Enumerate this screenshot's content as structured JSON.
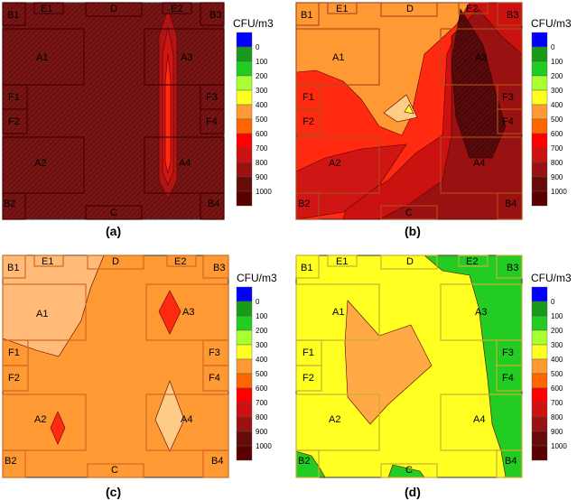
{
  "figure": {
    "panels": [
      {
        "id": "a",
        "caption": "(a)",
        "legend_title": "CFU/m3",
        "labels": {
          "B1": "B1",
          "B2": "B2",
          "B3": "B3",
          "B4": "B4",
          "E1": "E1",
          "E2": "E2",
          "D": "D",
          "C": "C",
          "A1": "A1",
          "A2": "A2",
          "A3": "A3",
          "A4": "A4",
          "F1": "F1",
          "F2": "F2",
          "F3": "F3",
          "F4": "F4"
        }
      },
      {
        "id": "b",
        "caption": "(b)",
        "legend_title": "CFU/m3",
        "labels": {
          "B1": "B1",
          "B2": "B2",
          "B3": "B3",
          "B4": "B4",
          "E1": "E1",
          "E2": "E2",
          "D": "D",
          "C": "C",
          "A1": "A1",
          "A2": "A2",
          "A3": "A3",
          "A4": "A4",
          "F1": "F1",
          "F2": "F2",
          "F3": "F3",
          "F4": "F4"
        }
      },
      {
        "id": "c",
        "caption": "(c)",
        "legend_title": "CFU/m3",
        "labels": {
          "B1": "B1",
          "B2": "B2",
          "B3": "B3",
          "B4": "B4",
          "E1": "E1",
          "E2": "E2",
          "D": "D",
          "C": "C",
          "A1": "A1",
          "A2": "A2",
          "A3": "A3",
          "A4": "A4",
          "F1": "F1",
          "F2": "F2",
          "F3": "F3",
          "F4": "F4"
        }
      },
      {
        "id": "d",
        "caption": "(d)",
        "legend_title": "CFU/m3",
        "labels": {
          "B1": "B1",
          "B2": "B2",
          "B3": "B3",
          "B4": "B4",
          "E1": "E1",
          "E2": "E2",
          "D": "D",
          "C": "C",
          "A1": "A1",
          "A2": "A2",
          "A3": "A3",
          "A4": "A4",
          "F1": "F1",
          "F2": "F2",
          "F3": "F3",
          "F4": "F4"
        }
      }
    ],
    "scale": {
      "levels": [
        "0",
        "100",
        "200",
        "300",
        "400",
        "500",
        "600",
        "700",
        "800",
        "900",
        "1000"
      ],
      "colors": [
        "#0000ff",
        "#1a9a1a",
        "#22cc22",
        "#aaff33",
        "#ffff22",
        "#ff9933",
        "#ff6600",
        "#ff0000",
        "#cc1111",
        "#991111",
        "#660a0a",
        "#5a0000"
      ]
    }
  }
}
